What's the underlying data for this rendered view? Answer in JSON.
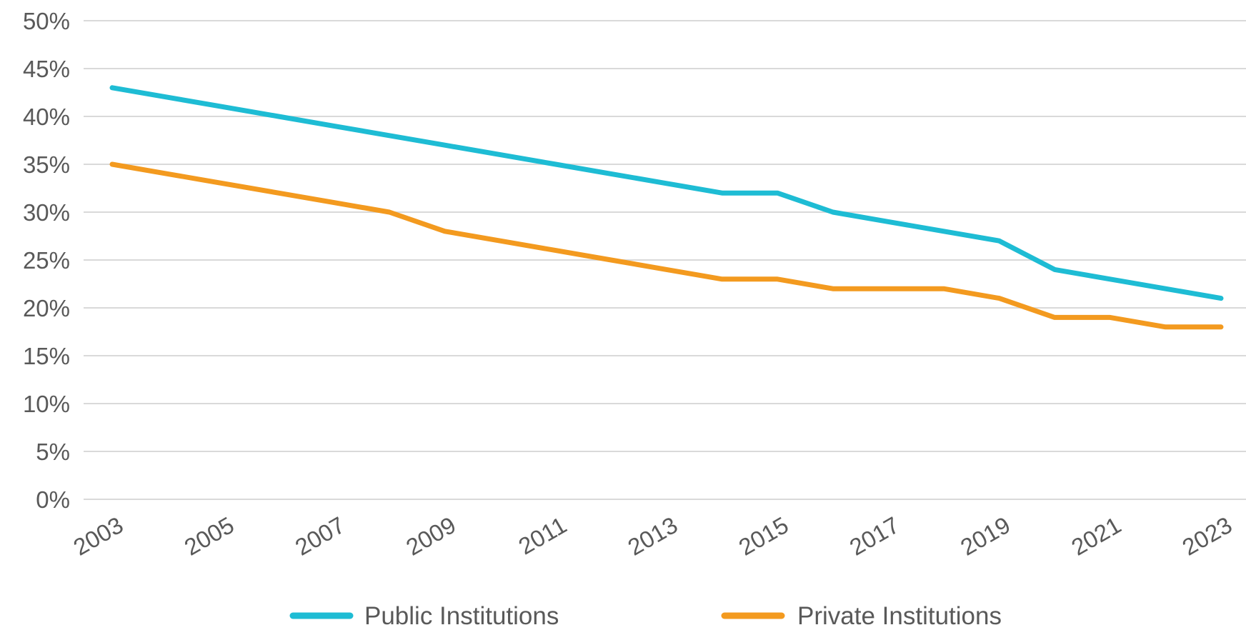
{
  "chart_data": {
    "type": "line",
    "title": "",
    "xlabel": "",
    "ylabel": "",
    "x": [
      2003,
      2004,
      2005,
      2006,
      2007,
      2008,
      2009,
      2010,
      2011,
      2012,
      2013,
      2014,
      2015,
      2016,
      2017,
      2018,
      2019,
      2020,
      2021,
      2022,
      2023
    ],
    "x_tick_labels": [
      "2003",
      "2005",
      "2007",
      "2009",
      "2011",
      "2013",
      "2015",
      "2017",
      "2019",
      "2021",
      "2023"
    ],
    "y_tick_labels": [
      "0%",
      "5%",
      "10%",
      "15%",
      "20%",
      "25%",
      "30%",
      "35%",
      "40%",
      "45%",
      "50%"
    ],
    "ylim": [
      0,
      50
    ],
    "xlim": [
      2003,
      2023
    ],
    "y_unit": "%",
    "grid": "horizontal",
    "legend_position": "bottom",
    "series": [
      {
        "name": "Public Institutions",
        "color": "#1ebcd4",
        "values": [
          43,
          42,
          41,
          40,
          39,
          38,
          37,
          36,
          35,
          34,
          33,
          32,
          32,
          30,
          29,
          28,
          27,
          24,
          23,
          22,
          21
        ]
      },
      {
        "name": "Private Institutions",
        "color": "#f39a1f",
        "values": [
          35,
          34,
          33,
          32,
          31,
          30,
          28,
          27,
          26,
          25,
          24,
          23,
          23,
          22,
          22,
          22,
          21,
          19,
          19,
          18,
          18
        ]
      }
    ]
  }
}
